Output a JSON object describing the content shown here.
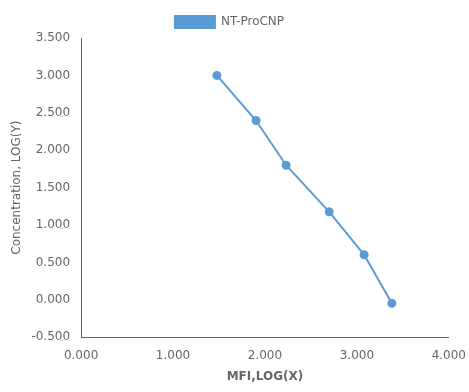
{
  "chart_data": {
    "type": "line",
    "xlabel": "MFI,LOG(X)",
    "ylabel": "Concentration, LOG(Y)",
    "x": [
      1.477,
      1.903,
      2.23,
      2.699,
      3.079,
      3.38
    ],
    "series": [
      {
        "name": "NT-ProCNP",
        "color": "#5B9BD5",
        "marker": "circle",
        "values": [
          3.0,
          2.397,
          1.799,
          1.176,
          0.602,
          -0.046
        ]
      }
    ],
    "xlim": [
      0.0,
      4.0
    ],
    "ylim": [
      -0.5,
      3.5
    ],
    "xticks": [
      {
        "value": 0,
        "label": "0.000"
      },
      {
        "value": 1,
        "label": "1.000"
      },
      {
        "value": 2,
        "label": "2.000"
      },
      {
        "value": 3,
        "label": "3.000"
      },
      {
        "value": 4,
        "label": "4.000"
      }
    ],
    "yticks": [
      {
        "value": -0.5,
        "label": "-0.500"
      },
      {
        "value": 0,
        "label": "0.000"
      },
      {
        "value": 0.5,
        "label": "0.500"
      },
      {
        "value": 1,
        "label": "1.000"
      },
      {
        "value": 1.5,
        "label": "1.500"
      },
      {
        "value": 2,
        "label": "2.000"
      },
      {
        "value": 2.5,
        "label": "2.500"
      },
      {
        "value": 3,
        "label": "3.000"
      },
      {
        "value": 3.5,
        "label": "3.500"
      }
    ],
    "grid": false,
    "legend": "top"
  }
}
